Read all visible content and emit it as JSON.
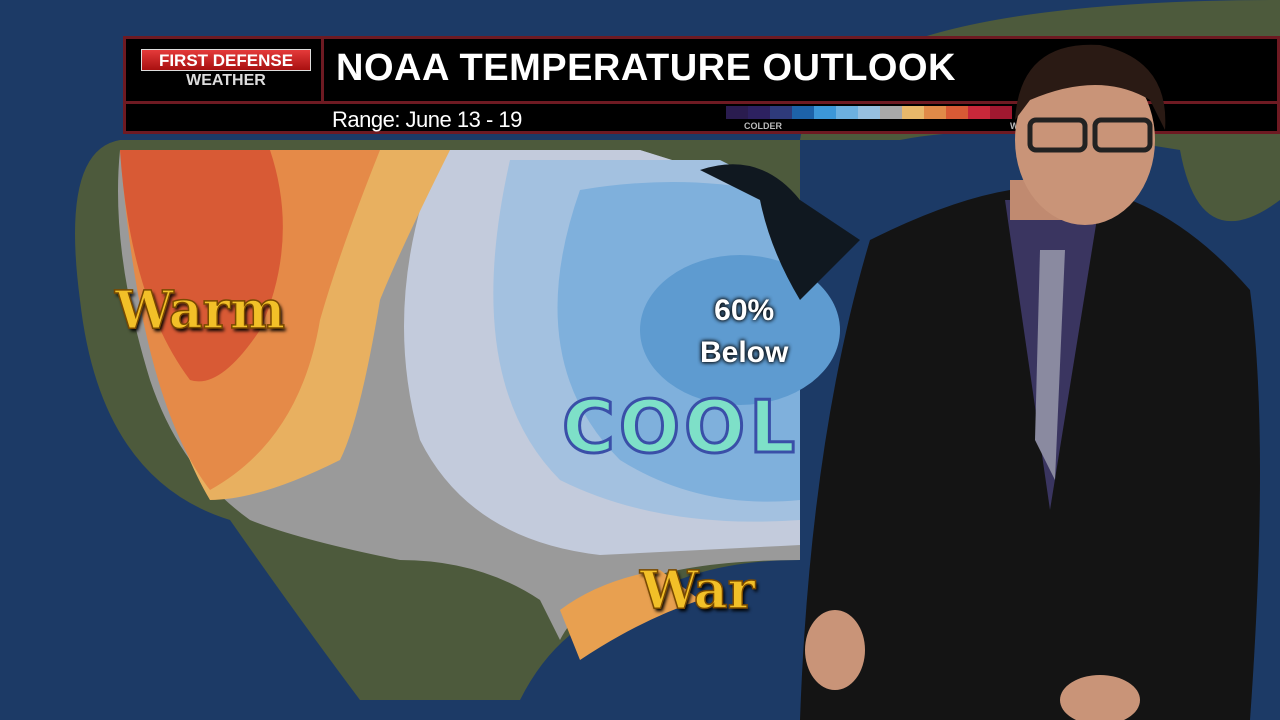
{
  "header": {
    "logo_top": "FIRST DEFENSE",
    "logo_bottom": "WEATHER",
    "title": "NOAA TEMPERATURE OUTLOOK",
    "range": "Range: June 13 - 19"
  },
  "legend": {
    "colder_label": "COLDER",
    "warmer_label": "W",
    "colors": [
      "#2a1c4f",
      "#2d2160",
      "#2e3a7a",
      "#1d62a8",
      "#3c97d8",
      "#6cb0e0",
      "#96bfe0",
      "#a8a8a8",
      "#e8b86a",
      "#e08a48",
      "#d85a35",
      "#c8283a",
      "#a01830"
    ]
  },
  "map": {
    "warm_west": "Warm",
    "warm_south": "War",
    "probability": "60%",
    "below": "Below",
    "cool": "COOL"
  }
}
